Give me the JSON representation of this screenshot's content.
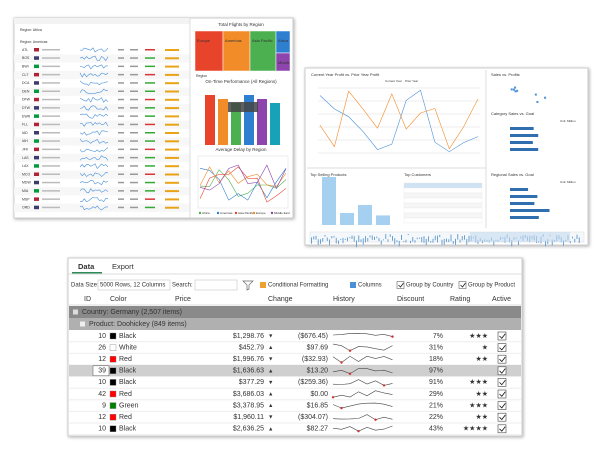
{
  "flights_panel": {
    "regions": [
      "Region: Africa",
      "Region: Americas"
    ],
    "airports": [
      "ATL",
      "BOS",
      "BWI",
      "CLT",
      "DCA",
      "DEN",
      "DFW",
      "DTW",
      "EWR",
      "FLL",
      "IAD",
      "IAH",
      "JFK",
      "LAS",
      "LAX",
      "MCO",
      "MDW",
      "MIA",
      "MSP",
      "ORD"
    ],
    "treemap_title": "Total Flights by Region",
    "treemap": [
      "Europe",
      "Americas",
      "Asia Pacific",
      "Africa",
      "Middle"
    ],
    "axis_label": "Region",
    "bar_title": "On-Time Performance (All Regions)",
    "line_title": "Average Delay by Region",
    "legend": [
      "Africa",
      "Americas",
      "Asia Pacific",
      "Europe",
      "Middle East"
    ]
  },
  "sales_panel": {
    "profit_title": "Current Year Profit vs. Prior Year Profit",
    "profit_legend": [
      "Current Year",
      "Prior Year"
    ],
    "sales_profit_title": "Sales vs. Profits",
    "category_title": "Category Sales vs. Goal",
    "unit": "Unit: Million",
    "top_products": "Top Selling Products",
    "top_customers": "Top Customers",
    "regional_title": "Regional Sales vs. Goal"
  },
  "grid": {
    "tabs": [
      "Data",
      "Export"
    ],
    "toolbar": {
      "data_size": "Data Size:",
      "size_value": "5000 Rows, 12 Columns",
      "search": "Search:",
      "conditional": "Conditional Formatting",
      "columns": "Columns",
      "group_country": "Group by Country",
      "group_product": "Group by Product"
    },
    "columns": [
      "ID",
      "Color",
      "Price",
      "Change",
      "History",
      "Discount",
      "Rating",
      "Active"
    ],
    "group": "Country: Germany (2,507 items)",
    "subgroup": "Product: Doohickey (849 items)",
    "rows": [
      {
        "id": 10,
        "color": "Black",
        "price": "$1,298.76",
        "arrow": "▼",
        "change": "($676.45)",
        "discount": "7%",
        "rating": "★★★",
        "active": true
      },
      {
        "id": 26,
        "color": "White",
        "price": "$452.79",
        "arrow": "▲",
        "change": "$97.69",
        "discount": "31%",
        "rating": "★",
        "active": true
      },
      {
        "id": 12,
        "color": "Red",
        "price": "$1,996.76",
        "arrow": "▼",
        "change": "($32.93)",
        "discount": "18%",
        "rating": "★★",
        "active": true
      },
      {
        "id": 39,
        "color": "Black",
        "price": "$1,636.63",
        "arrow": "▲",
        "change": "$13.20",
        "discount": "97%",
        "rating": "",
        "active": true,
        "selected": true
      },
      {
        "id": 10,
        "color": "Black",
        "price": "$377.29",
        "arrow": "▼",
        "change": "($259.36)",
        "discount": "91%",
        "rating": "★★★",
        "active": true
      },
      {
        "id": 42,
        "color": "Red",
        "price": "$3,686.03",
        "arrow": "▲",
        "change": "$0.00",
        "discount": "29%",
        "rating": "★★",
        "active": true
      },
      {
        "id": 9,
        "color": "Green",
        "price": "$3,378.95",
        "arrow": "▲",
        "change": "$16.85",
        "discount": "21%",
        "rating": "★★★",
        "active": true
      },
      {
        "id": 12,
        "color": "Red",
        "price": "$1,960.11",
        "arrow": "▼",
        "change": "($304.07)",
        "discount": "22%",
        "rating": "★★",
        "active": true
      },
      {
        "id": 10,
        "color": "Black",
        "price": "$2,636.25",
        "arrow": "▲",
        "change": "$82.27",
        "discount": "43%",
        "rating": "★★★★",
        "active": true
      }
    ]
  }
}
